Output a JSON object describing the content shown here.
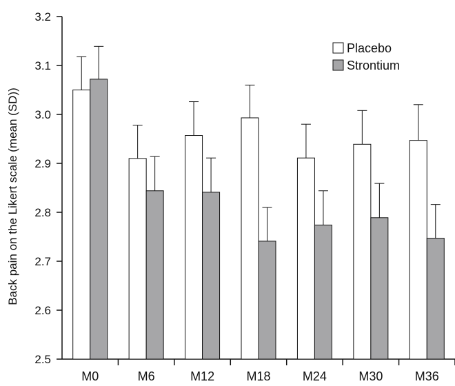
{
  "chart_data": {
    "type": "bar",
    "title": "",
    "xlabel": "",
    "ylabel": "Back pain on the Likert scale (mean (SD))",
    "ylim": [
      2.5,
      3.2
    ],
    "yticks": [
      "2.5",
      "2.6",
      "2.7",
      "2.8",
      "2.9",
      "3.0",
      "3.1",
      "3.2"
    ],
    "categories": [
      "M0",
      "M6",
      "M12",
      "M18",
      "M24",
      "M30",
      "M36"
    ],
    "series": [
      {
        "name": "Placebo",
        "color": "#ffffff",
        "values": [
          3.05,
          2.91,
          2.957,
          2.993,
          2.911,
          2.939,
          2.947
        ],
        "error_upper": [
          3.118,
          2.978,
          3.026,
          3.06,
          2.98,
          3.008,
          3.02
        ]
      },
      {
        "name": "Strontium",
        "color": "#a6a6a8",
        "values": [
          3.072,
          2.844,
          2.841,
          2.741,
          2.774,
          2.789,
          2.747
        ],
        "error_upper": [
          3.139,
          2.914,
          2.911,
          2.81,
          2.844,
          2.859,
          2.816
        ]
      }
    ],
    "grid": false,
    "legend_position": "top-right"
  }
}
